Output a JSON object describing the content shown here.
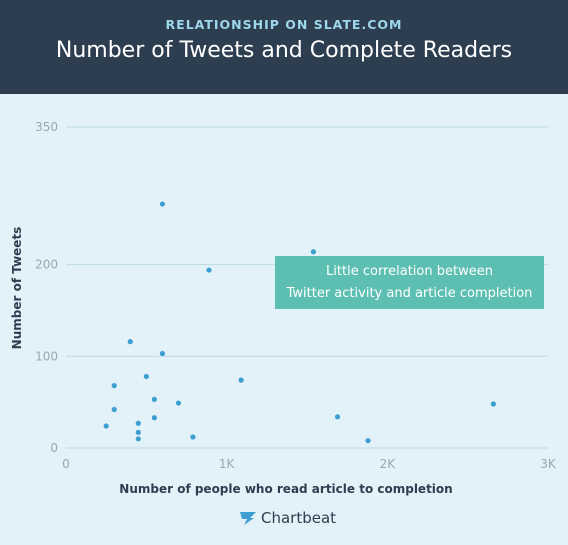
{
  "header": {
    "kicker": "RELATIONSHIP ON SLATE.COM",
    "title": "Number of Tweets and Complete Readers"
  },
  "annotation": {
    "line1": "Little correlation between",
    "line2": "Twitter activity and article completion"
  },
  "brand": {
    "name": "Chartbeat",
    "icon": "chartbeat-logo-icon"
  },
  "colors": {
    "header_bg": "#2c3e50",
    "kicker": "#9fd7ea",
    "plot_bg": "#e3f2f8",
    "point": "#3d9fd1",
    "callout_bg": "#5dbfb2"
  },
  "chart_data": {
    "type": "scatter",
    "xlabel": "Number of people who read article to completion",
    "ylabel": "Number of Tweets",
    "xlim": [
      0,
      3000
    ],
    "ylim": [
      0,
      350
    ],
    "x_ticks": [
      {
        "value": 0,
        "label": "0"
      },
      {
        "value": 1000,
        "label": "1K"
      },
      {
        "value": 2000,
        "label": "2K"
      },
      {
        "value": 3000,
        "label": "3K"
      }
    ],
    "y_ticks": [
      {
        "value": 0,
        "label": "0"
      },
      {
        "value": 100,
        "label": "100"
      },
      {
        "value": 200,
        "label": "200"
      },
      {
        "value": 350,
        "label": "350"
      }
    ],
    "grid": true,
    "points": [
      {
        "x": 600,
        "y": 266
      },
      {
        "x": 1540,
        "y": 214
      },
      {
        "x": 890,
        "y": 194
      },
      {
        "x": 400,
        "y": 116
      },
      {
        "x": 600,
        "y": 103
      },
      {
        "x": 500,
        "y": 78
      },
      {
        "x": 1090,
        "y": 74
      },
      {
        "x": 300,
        "y": 68
      },
      {
        "x": 550,
        "y": 53
      },
      {
        "x": 700,
        "y": 49
      },
      {
        "x": 300,
        "y": 42
      },
      {
        "x": 2660,
        "y": 48
      },
      {
        "x": 550,
        "y": 33
      },
      {
        "x": 1690,
        "y": 34
      },
      {
        "x": 450,
        "y": 27
      },
      {
        "x": 250,
        "y": 24
      },
      {
        "x": 450,
        "y": 17
      },
      {
        "x": 450,
        "y": 10
      },
      {
        "x": 790,
        "y": 12
      },
      {
        "x": 1880,
        "y": 8
      }
    ]
  }
}
